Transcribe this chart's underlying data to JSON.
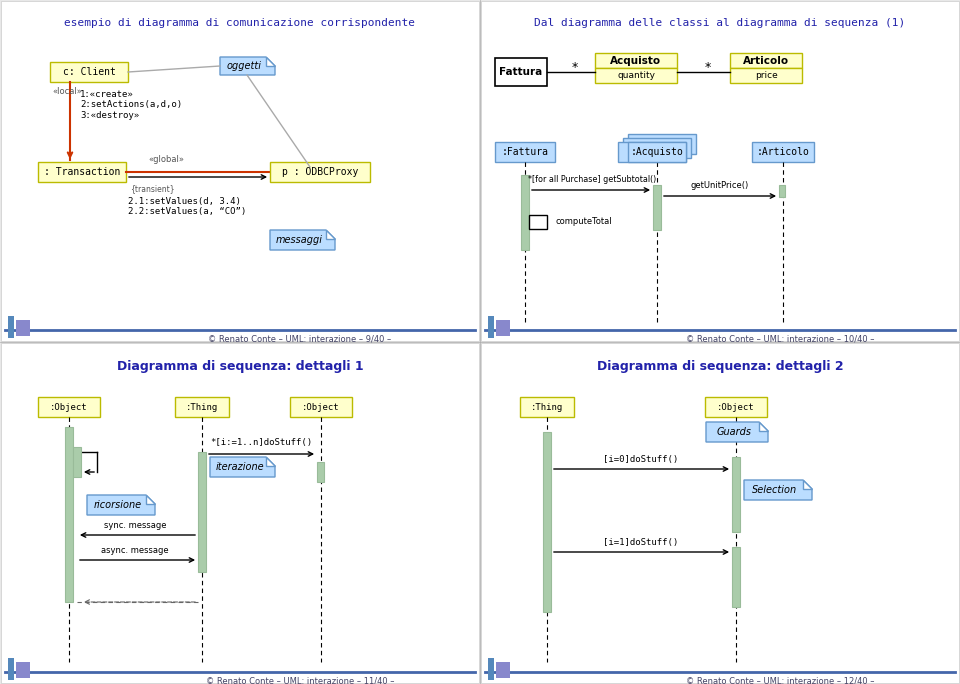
{
  "bg_color": "#e8e8e8",
  "panel_bg": "#ffffff",
  "blue_title_color": "#2222aa",
  "panel1_title": "esempio di diagramma di comunicazione corrispondente",
  "panel2_title": "Dal diagramma delle classi al diagramma di sequenza (1)",
  "panel3_title": "Diagramma di sequenza: dettagli 1",
  "panel4_title": "Diagramma di sequenza: dettagli 2",
  "footer1": "© Renato Conte – UML: interazione – 9/40 –",
  "footer2": "© Renato Conte – UML: interazione – 10/40 –",
  "footer3": "© Renato Conte – UML: interazione – 11/40 –",
  "footer4": "© Renato Conte – UML: interazione – 12/40 –",
  "box_yellow": "#ffffcc",
  "box_yellow_border": "#bbbb00",
  "box_blue_light": "#bbddff",
  "box_green_activation": "#aaccaa",
  "red_line": "#cc3300",
  "gray_line": "#aaaaaa"
}
